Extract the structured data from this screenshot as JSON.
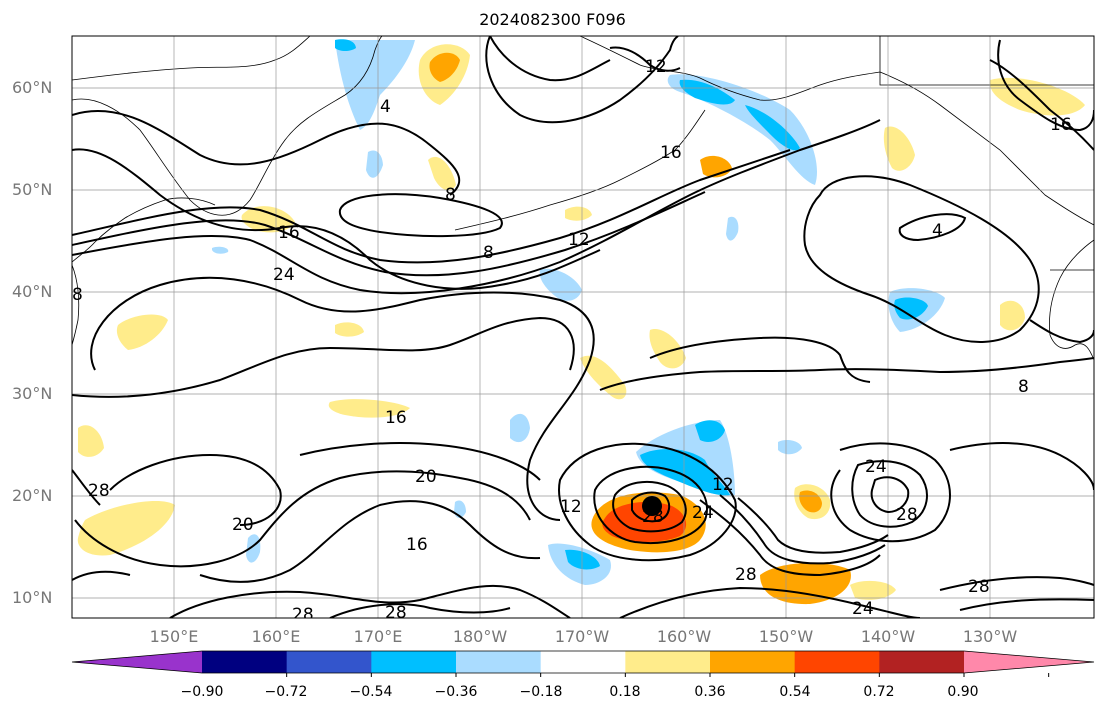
{
  "title": "2024082300 F096",
  "lat_labels": [
    "60°N",
    "50°N",
    "40°N",
    "30°N",
    "20°N",
    "10°N"
  ],
  "lon_labels": [
    "150°E",
    "160°E",
    "170°E",
    "180°W",
    "170°W",
    "160°W",
    "150°W",
    "140°W",
    "130°W"
  ],
  "colorbar": {
    "colors": [
      "#9933cc",
      "#000080",
      "#3355cc",
      "#00bfff",
      "#aadcff",
      "#ffffff",
      "#ffec8b",
      "#ffa500",
      "#ff4500",
      "#b22222",
      "#ff88aa"
    ],
    "tick_labels": [
      "−0.90",
      "−0.72",
      "−0.54",
      "−0.36",
      "−0.18",
      "0.18",
      "0.36",
      "0.54",
      "0.72",
      "0.90"
    ]
  },
  "contour_labels": [
    "12",
    "16",
    "4",
    "8",
    "12",
    "16",
    "24",
    "4",
    "8",
    "16",
    "20",
    "16",
    "20",
    "12",
    "28",
    "24",
    "24",
    "28",
    "28",
    "28",
    "28",
    "28",
    "24",
    "28",
    "16",
    "12",
    "8",
    "8"
  ],
  "storm_marker": "tropical-cyclone-center",
  "colors": {
    "contour": "#000000",
    "grid": "#999999",
    "coast": "#000000"
  }
}
